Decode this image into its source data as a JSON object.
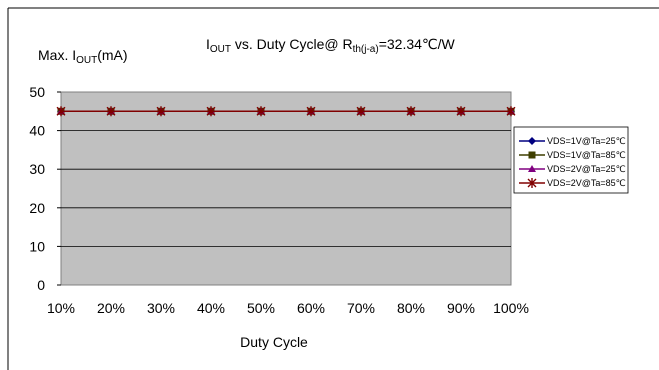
{
  "chart_data": {
    "type": "line",
    "title": {
      "prefix": "I",
      "prefix_sub": "OUT",
      "middle": " vs. Duty Cycle@ R",
      "middle_sub": "th(j-a)",
      "suffix": "=32.34℃/W"
    },
    "ylabel": {
      "prefix": "Max. I",
      "sub": "OUT",
      "suffix": "(mA)"
    },
    "xlabel": "Duty Cycle",
    "categories": [
      "10%",
      "20%",
      "30%",
      "40%",
      "50%",
      "60%",
      "70%",
      "80%",
      "90%",
      "100%"
    ],
    "ylim": [
      0,
      50
    ],
    "yticks": [
      0,
      10,
      20,
      30,
      40,
      50
    ],
    "grid": true,
    "plot_background": "#c0c0c0",
    "legend_position": "right",
    "series": [
      {
        "name": "VDS=1V@Ta=25℃",
        "color": "#000080",
        "marker": "diamond",
        "values": [
          45,
          45,
          45,
          45,
          45,
          45,
          45,
          45,
          45,
          45
        ]
      },
      {
        "name": "VDS=1V@Ta=85℃",
        "color": "#3f3f00",
        "marker": "square",
        "values": [
          45,
          45,
          45,
          45,
          45,
          45,
          45,
          45,
          45,
          45
        ]
      },
      {
        "name": "VDS=2V@Ta=25℃",
        "color": "#800080",
        "marker": "triangle",
        "values": [
          45,
          45,
          45,
          45,
          45,
          45,
          45,
          45,
          45,
          45
        ]
      },
      {
        "name": "VDS=2V@Ta=85℃",
        "color": "#800000",
        "marker": "star",
        "values": [
          45,
          45,
          45,
          45,
          45,
          45,
          45,
          45,
          45,
          45
        ]
      }
    ]
  }
}
